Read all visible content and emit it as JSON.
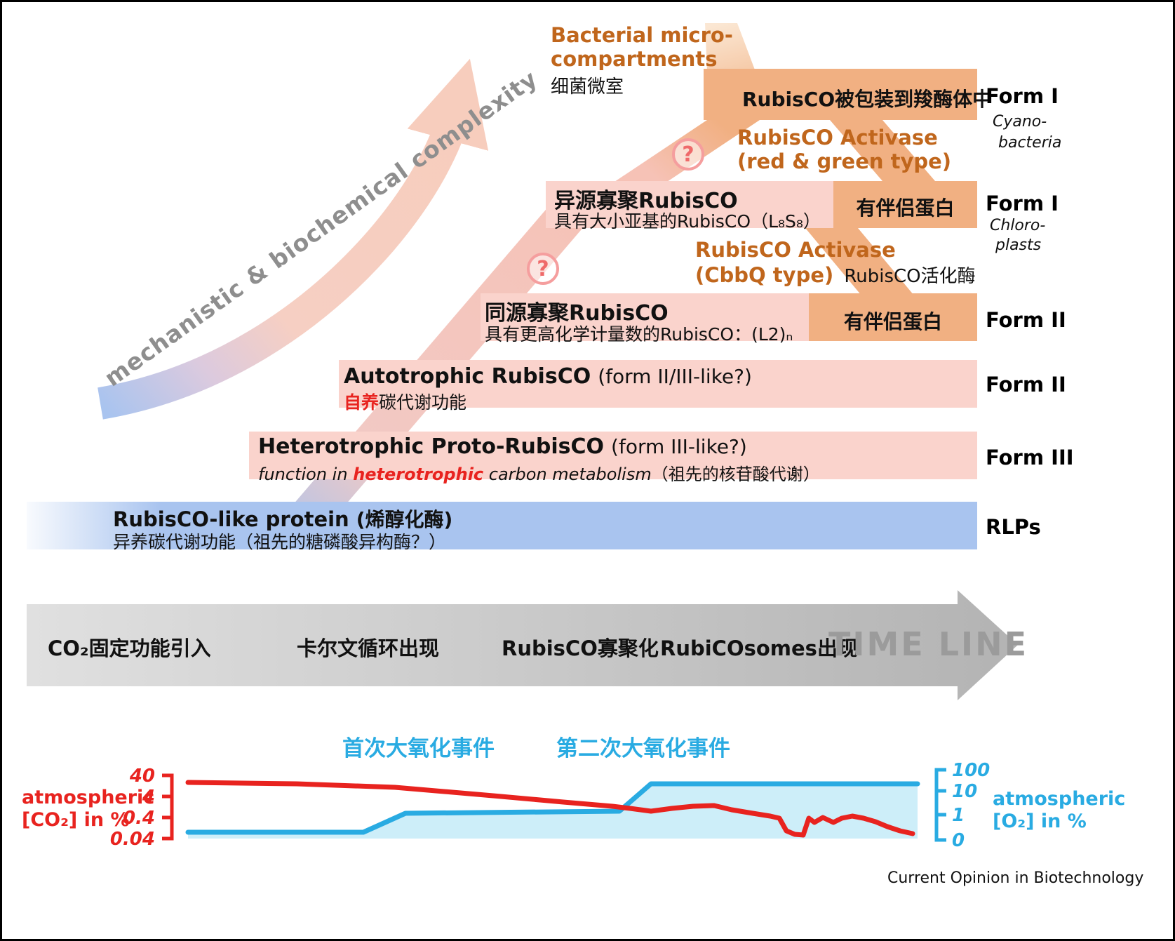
{
  "figure": {
    "credit": "Current Opinion in Biotechnology"
  },
  "complexity_label": "mechanistic & biochemical complexity",
  "top": {
    "bmc_line1": "Bacterial micro-",
    "bmc_line2": "compartments",
    "bmc_cn": "细菌微室",
    "question_mark": "?"
  },
  "activase_rg": {
    "line1": "RubisCO Activase",
    "line2": "(red & green type)"
  },
  "activase_cbbq": {
    "line1": "RubisCO Activase",
    "line2_en": "(CbbQ type)",
    "line2_cn": "RubisCO活化酶"
  },
  "bands": {
    "form1_cyano": {
      "title": "RubisCO被包装到羧酶体中",
      "form": "Form I",
      "taxa_line1": "Cyano-",
      "taxa_line2": "bacteria"
    },
    "form1_chloro": {
      "title": "异源寡聚RubisCO",
      "subtitle": "具有大小亚基的RubisCO（L₈S₈）",
      "chaperone": "有伴侣蛋白",
      "form": "Form I",
      "taxa_line1": "Chloro-",
      "taxa_line2": "plasts"
    },
    "form2_oligo": {
      "title": "同源寡聚RubisCO",
      "subtitle": "具有更高化学计量数的RubisCO：(L2)ₙ",
      "chaperone": "有伴侣蛋白",
      "form": "Form II"
    },
    "form2_auto": {
      "title": "Autotrophic RubisCO",
      "title_note": "(form II/III-like?)",
      "subtitle_red": "自养",
      "subtitle_rest": "碳代谢功能",
      "form": "Form II"
    },
    "form3": {
      "title": "Heterotrophic Proto-RubisCO",
      "title_note": "(form III-like?)",
      "subtitle_pre": "function in ",
      "subtitle_red": "heterotrophic",
      "subtitle_post": " carbon metabolism",
      "subtitle_cn": "（祖先的核苷酸代谢）",
      "form": "Form III"
    },
    "rlp": {
      "title": "RubisCO-like protein",
      "title_note": "(烯醇化酶)",
      "subtitle": "异养碳代谢功能（祖先的糖磷酸异构酶？）",
      "form": "RLPs"
    }
  },
  "timeline": {
    "events": [
      "CO₂固定功能引入",
      "卡尔文循环出现",
      "RubisCO寡聚化",
      "RubiCOsomes出现"
    ],
    "label": "TIME LINE"
  },
  "chart_data": {
    "type": "line",
    "description": "Stylized atmospheric CO2 (red) and O2 (cyan) levels over geological time, log-scale axes",
    "events": [
      {
        "label": "首次大氧化事件"
      },
      {
        "label": "第二次大氧化事件"
      }
    ],
    "left_axis": {
      "label_line1": "atmospheric",
      "label_line2": "[CO₂] in %",
      "ticks": [
        "40",
        "4",
        "0.4",
        "0.04"
      ],
      "scale": "log"
    },
    "right_axis": {
      "label_line1": "atmospheric",
      "label_line2": "[O₂] in %",
      "ticks": [
        "100",
        "10",
        "1",
        "0"
      ],
      "scale": "log"
    },
    "series": [
      {
        "name": "atmospheric [CO2] in %",
        "color": "#e8231f",
        "trend": "starts ~40%, slow decline to ~1%, then drops with fluctuations to ~0.04%",
        "points": [
          [
            265,
            1112
          ],
          [
            420,
            1114
          ],
          [
            560,
            1119
          ],
          [
            700,
            1131
          ],
          [
            800,
            1140
          ],
          [
            870,
            1146
          ],
          [
            895,
            1149
          ],
          [
            925,
            1153
          ],
          [
            955,
            1149
          ],
          [
            985,
            1146
          ],
          [
            1015,
            1145
          ],
          [
            1040,
            1151
          ],
          [
            1070,
            1156
          ],
          [
            1095,
            1160
          ],
          [
            1108,
            1163
          ],
          [
            1118,
            1181
          ],
          [
            1130,
            1186
          ],
          [
            1142,
            1187
          ],
          [
            1150,
            1163
          ],
          [
            1158,
            1169
          ],
          [
            1170,
            1162
          ],
          [
            1185,
            1169
          ],
          [
            1197,
            1163
          ],
          [
            1212,
            1160
          ],
          [
            1228,
            1163
          ],
          [
            1245,
            1168
          ],
          [
            1262,
            1175
          ],
          [
            1280,
            1181
          ],
          [
            1298,
            1185
          ]
        ]
      },
      {
        "name": "atmospheric [O2] in %",
        "color": "#29abe2",
        "fill": "#cdeef9",
        "trend": "near 0 until First Great Oxidation Event (rise to ~1%), plateau, then rises steeply at Second Great Oxidation Event to ~10-100%",
        "points": [
          [
            265,
            1183
          ],
          [
            515,
            1183
          ],
          [
            575,
            1156
          ],
          [
            880,
            1153
          ],
          [
            895,
            1140
          ],
          [
            925,
            1114
          ],
          [
            1305,
            1114
          ]
        ],
        "baseline_y": 1192
      }
    ]
  }
}
